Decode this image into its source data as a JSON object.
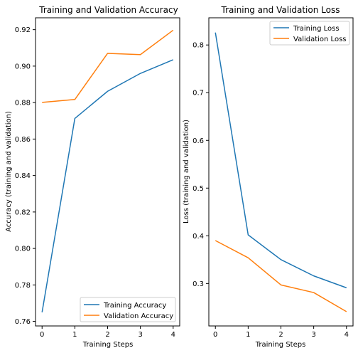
{
  "colors": {
    "train": "#1f77b4",
    "val": "#ff7f0e"
  },
  "chart_data": [
    {
      "type": "line",
      "title": "Training and Validation Accuracy",
      "xlabel": "Training Steps",
      "ylabel": "Accuracy (training and validation)",
      "x": [
        0,
        1,
        2,
        3,
        4
      ],
      "xticks": [
        "0",
        "1",
        "2",
        "3",
        "4"
      ],
      "yticks": [
        "0.76",
        "0.78",
        "0.80",
        "0.82",
        "0.84",
        "0.86",
        "0.88",
        "0.90",
        "0.92"
      ],
      "xlim": [
        -0.2,
        4.2
      ],
      "ylim": [
        0.7575,
        0.9265
      ],
      "grid": false,
      "legend_position": "lower-right",
      "series": [
        {
          "name": "Training Accuracy",
          "values": [
            0.765,
            0.8713,
            0.8862,
            0.896,
            0.9035
          ]
        },
        {
          "name": "Validation Accuracy",
          "values": [
            0.8801,
            0.8817,
            0.907,
            0.9063,
            0.9197
          ]
        }
      ]
    },
    {
      "type": "line",
      "title": "Training and Validation Loss",
      "xlabel": "Training Steps",
      "ylabel": "Loss (training and validation)",
      "x": [
        0,
        1,
        2,
        3,
        4
      ],
      "xticks": [
        "0",
        "1",
        "2",
        "3",
        "4"
      ],
      "yticks": [
        "0.3",
        "0.4",
        "0.5",
        "0.6",
        "0.7",
        "0.8"
      ],
      "xlim": [
        -0.2,
        4.2
      ],
      "ylim": [
        0.211,
        0.857
      ],
      "grid": false,
      "legend_position": "upper-right",
      "series": [
        {
          "name": "Training Loss",
          "values": [
            0.826,
            0.402,
            0.35,
            0.316,
            0.291
          ]
        },
        {
          "name": "Validation Loss",
          "values": [
            0.39,
            0.354,
            0.297,
            0.281,
            0.241
          ]
        }
      ]
    }
  ]
}
